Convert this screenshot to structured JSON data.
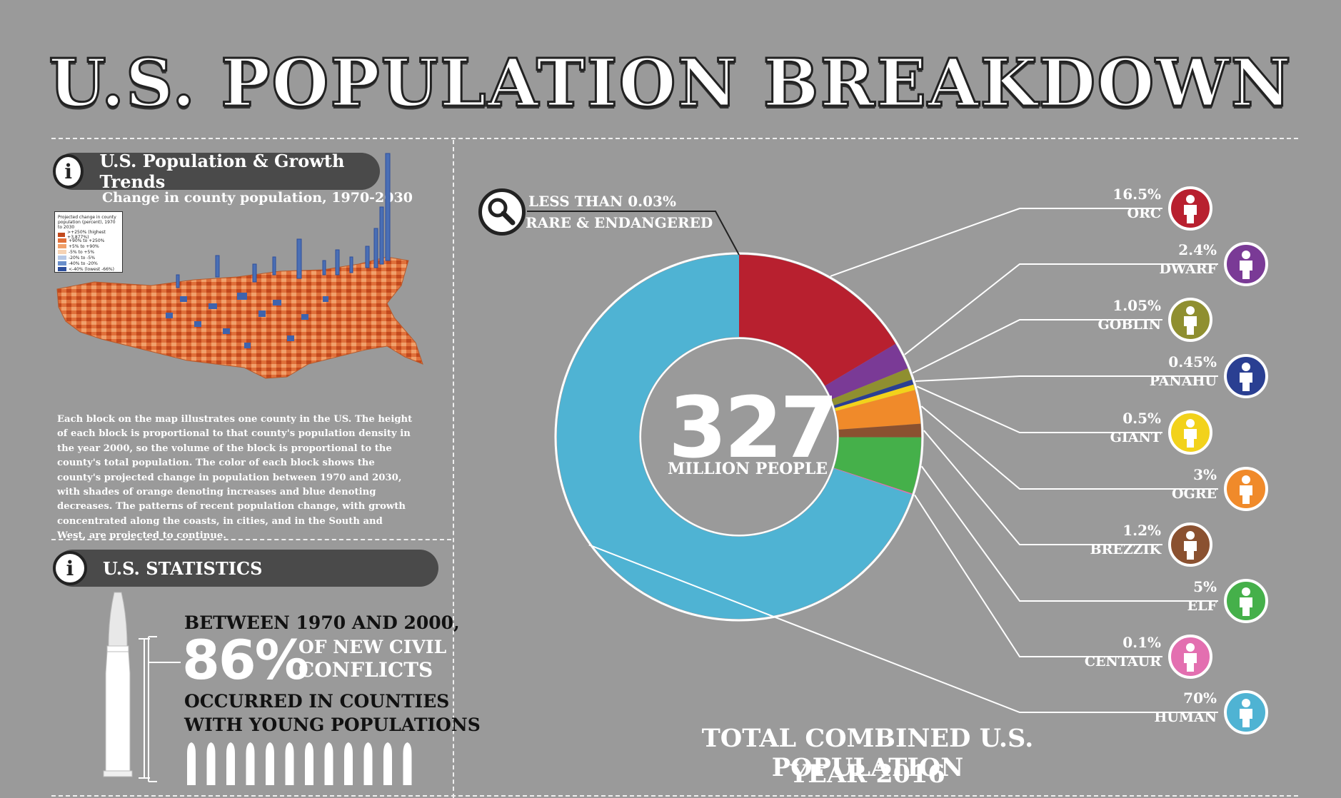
{
  "title": "U.S. POPULATION BREAKDOWN",
  "left_panel": {
    "section1_title": "U.S. Population & Growth Trends",
    "section1_subtitle": "Change in county population, 1970-2030",
    "legend": {
      "title": "Projected change in county population (percent), 1970 to 2030",
      "items": [
        {
          "label": ">+250% (highest +3,877%)",
          "color": "#c2491d"
        },
        {
          "label": "+90% to +250%",
          "color": "#e0703a"
        },
        {
          "label": "+5% to +90%",
          "color": "#f0a06b"
        },
        {
          "label": "-5% to +5%",
          "color": "#f6d3b5"
        },
        {
          "label": "-20% to -5%",
          "color": "#b6c8e6"
        },
        {
          "label": "-40% to -20%",
          "color": "#6a8fcb"
        },
        {
          "label": "<-40% (lowest -66%)",
          "color": "#2e4f9c"
        }
      ]
    },
    "description": "Each block on the map illustrates one county in the US. The height of each block is proportional to that county's population density in the year 2000, so the volume of the block is proportional to the county's total population. The color of each block shows the county's projected change in population between 1970 and 2030, with shades of orange denoting increases and blue denoting decreases. The patterns of recent population change, with growth concentrated along the coasts, in cities, and in the South and West, are projected to continue.",
    "section2_title": "U.S. STATISTICS",
    "stat_line1": "BETWEEN 1970 AND 2000,",
    "stat_big": "86%",
    "stat_right1": "OF NEW CIVIL",
    "stat_right2": "CONFLICTS",
    "stat_line3": "OCCURRED IN COUNTIES",
    "stat_line4": "WITH YOUNG POPULATIONS"
  },
  "rare_note": {
    "line1": "LESS THAN 0.03%",
    "line2": "RARE & ENDANGERED"
  },
  "center": {
    "number": "327",
    "label": "MILLION PEOPLE"
  },
  "footer": {
    "line1": "TOTAL COMBINED U.S. POPULATION",
    "line2": "YEAR 2016"
  },
  "chart_data": {
    "type": "pie",
    "donut": true,
    "categories": [
      "ORC",
      "DWARF",
      "GOBLIN",
      "PANAHU",
      "GIANT",
      "OGRE",
      "BREZZIK",
      "ELF",
      "CENTAUR",
      "HUMAN"
    ],
    "value_labels": [
      "16.5%",
      "2.4%",
      "1.05%",
      "0.45%",
      "0.5%",
      "3%",
      "1.2%",
      "5%",
      "0.1%",
      "70%"
    ],
    "values": [
      16.5,
      2.4,
      1.05,
      0.45,
      0.5,
      3,
      1.2,
      5,
      0.1,
      70
    ],
    "colors": [
      "#b8202f",
      "#7a3a96",
      "#8f8f30",
      "#2a3f92",
      "#f2d21b",
      "#f08a2a",
      "#8a5130",
      "#45b04a",
      "#e36fb0",
      "#4fb3d3"
    ]
  }
}
